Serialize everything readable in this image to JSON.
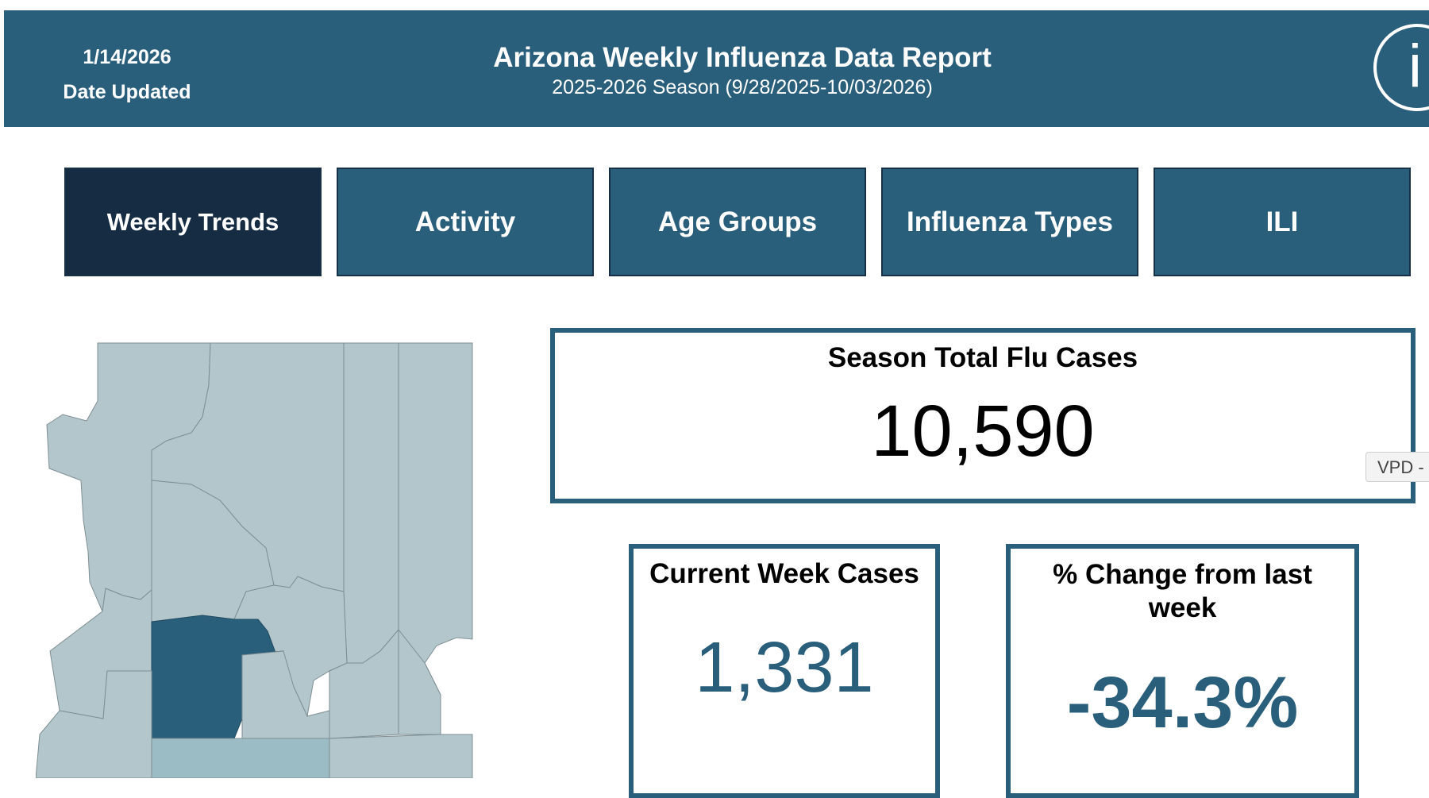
{
  "header": {
    "date_value": "1/14/2026",
    "date_label": "Date Updated",
    "title": "Arizona Weekly Influenza Data Report",
    "subtitle": "2025-2026 Season (9/28/2025-10/03/2026)",
    "info_glyph": "i",
    "info_icon": "info-icon"
  },
  "tabs": [
    {
      "label": "Weekly Trends",
      "active": true
    },
    {
      "label": "Activity",
      "active": false
    },
    {
      "label": "Age Groups",
      "active": false
    },
    {
      "label": "Influenza Types",
      "active": false
    },
    {
      "label": "ILI",
      "active": false
    }
  ],
  "season_total": {
    "title": "Season Total Flu Cases",
    "value": "10,590"
  },
  "current_week": {
    "title": "Current Week Cases",
    "value": "1,331"
  },
  "pct_change": {
    "title": "% Change from last week",
    "value": "-34.3%"
  },
  "side_tab": {
    "label": "VPD -"
  },
  "colors": {
    "header_bg": "#2a5f7c",
    "tab_bg": "#2a5f7c",
    "tab_active_bg": "#152c43",
    "map_default": "#b2c6cb",
    "map_highlight": "#2a5f7c",
    "map_mid": "#9bbcc5",
    "accent_value": "#2a5f7c"
  }
}
